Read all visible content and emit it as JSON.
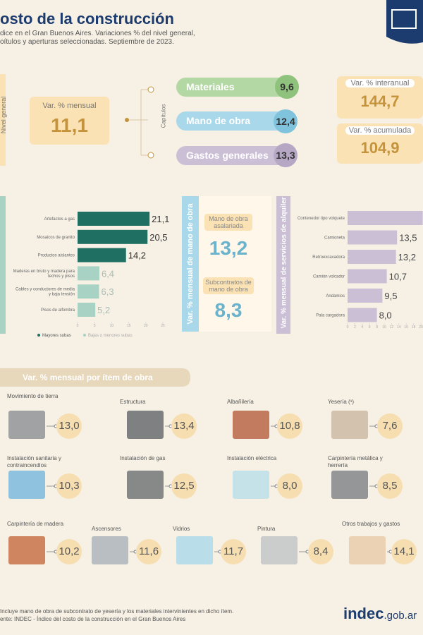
{
  "header": {
    "title": "osto de la construcción",
    "subtitle_lines": [
      "dice en el Gran Buenos Aires. Variaciones % del nivel general,",
      "oítulos y aperturas seleccionadas. Septiembre de 2023."
    ]
  },
  "summary": {
    "side_label": "Nivel general",
    "monthly_label": "Var. % mensual",
    "monthly_value": "11,1",
    "chapters_label": "Capítulos",
    "chapters": [
      {
        "name": "Materiales",
        "value": "9,6"
      },
      {
        "name": "Mano de obra",
        "value": "12,4"
      },
      {
        "name": "Gastos generales",
        "value": "13,3"
      }
    ],
    "interannual_label": "Var. % interanual",
    "interannual_value": "144,7",
    "accumulated_label": "Var. % acumulada",
    "accumulated_value": "104,9"
  },
  "labor": {
    "axis_label": "Var. % mensual de mano de obra",
    "items": [
      {
        "name": "Mano de obra asalariada",
        "value": "13,2"
      },
      {
        "name": "Subcontratos de mano de obra",
        "value": "8,3"
      }
    ]
  },
  "chart_data": [
    {
      "type": "bar",
      "orientation": "horizontal",
      "categories": [
        "Artefactos a gas",
        "Mosaicos de granito",
        "Productos aislantes",
        "Maderas en bruto y madera para techos y pisos",
        "Cables y conductores de media y baja tensión",
        "Pisos de alfombra"
      ],
      "values": [
        21.1,
        20.5,
        14.2,
        6.4,
        6.3,
        5.2
      ],
      "value_labels": [
        "21,1",
        "20,5",
        "14,2",
        "6,4",
        "6,3",
        "5,2"
      ],
      "colors": [
        "#1f6f62",
        "#1f6f62",
        "#1f6f62",
        "#a8d2c3",
        "#a8d2c3",
        "#a8d2c3"
      ],
      "value_label_colors": [
        "#333333",
        "#333333",
        "#333333",
        "#a9bdb6",
        "#a9bdb6",
        "#a9bdb6"
      ],
      "legend": [
        {
          "name": "Mayores subas",
          "color": "#1f6f62"
        },
        {
          "name": "Bajas o menores subas",
          "color": "#a8d2c3"
        }
      ],
      "xlim": [
        0,
        25
      ],
      "xticks": [
        0,
        5,
        10,
        15,
        20,
        25
      ]
    },
    {
      "type": "bar",
      "orientation": "horizontal",
      "axis_label": "Var. % mensual de servicios de alquiler",
      "categories": [
        "Contenedor tipo volquete",
        "Camioneta",
        "Retroexcavadora",
        "Camión volcador",
        "Andamios",
        "Pala cargadora"
      ],
      "values": [
        20.5,
        13.5,
        13.2,
        10.7,
        9.5,
        8.0
      ],
      "value_labels": [
        null,
        "13,5",
        "13,2",
        "10,7",
        "9,5",
        "8,0"
      ],
      "color": "#cbbfd6",
      "xlim": [
        0,
        20
      ],
      "xticks": [
        0,
        2,
        4,
        6,
        8,
        10,
        12,
        14,
        16,
        18,
        20
      ]
    }
  ],
  "items_section": {
    "title": "Var. % mensual por ítem de obra",
    "items": [
      {
        "name": "Movimiento de tierra",
        "value": "13,0"
      },
      {
        "name": "Estructura",
        "value": "13,4"
      },
      {
        "name": "Albañilería",
        "value": "10,8"
      },
      {
        "name": "Yesería (¹)",
        "value": "7,6"
      },
      {
        "name": "Instalación sanitaria y contraincendios",
        "value": "10,3"
      },
      {
        "name": "Instalación de gas",
        "value": "12,5"
      },
      {
        "name": "Instalación eléctrica",
        "value": "8,0"
      },
      {
        "name": "Carpintería metálica y herrería",
        "value": "8,5"
      },
      {
        "name": "Carpintería de madera",
        "value": "10,2"
      },
      {
        "name": "Ascensores",
        "value": "11,6"
      },
      {
        "name": "Vidrios",
        "value": "11,7"
      },
      {
        "name": "Pintura",
        "value": "8,4"
      },
      {
        "name": "Otros trabajos y gastos",
        "value": "14,1"
      }
    ]
  },
  "footer": {
    "note": "Incluye mano de obra de subcontrato de yesería y los materiales intervinientes en dicho ítem.",
    "source": "ente: INDEC - Índice del costo de la construcción en el Gran Buenos Aires",
    "logo": "indec",
    "logo_domain": ".gob.ar"
  }
}
